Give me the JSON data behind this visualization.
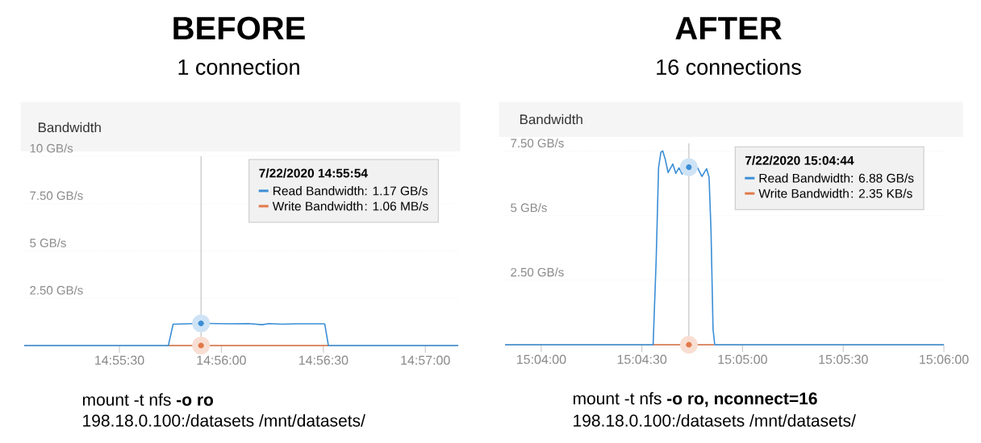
{
  "chart_data": [
    {
      "type": "line",
      "title": "BEFORE",
      "subtitle": "1 connection",
      "legend_title": "7/22/2020 14:55:54",
      "legend": "top right",
      "grid": "y",
      "marker": "none",
      "annotations": [
        "Bandwidth",
        ": 1.17  GB/s",
        ": 1.06  MB/s",
        "mount -t nfs **-o ro**",
        "198.18.0.100:/datasets /mnt/datasets/"
      ],
      "xlim": [
        14.91722,
        14.95269
      ],
      "ylim": [
        0,
        10
      ],
      "xticks": [
        {
          "value": 14.925,
          "label": "14:55:30"
        },
        {
          "value": 14.93333,
          "label": "14:56:00"
        },
        {
          "value": 14.94167,
          "label": "14:56:30"
        },
        {
          "value": 14.95,
          "label": "14:57:00"
        }
      ],
      "yticks": [
        {
          "value": 2.5,
          "label": "2.50 GB/s"
        },
        {
          "value": 5,
          "label": "5 GB/s"
        },
        {
          "value": 7.5,
          "label": "7.50 GB/s"
        },
        {
          "value": 10,
          "label": "10 GB/s"
        }
      ],
      "ref_lines": [
        {
          "axis": "x",
          "value": 14.93167,
          "color": "#b8b8b8"
        }
      ],
      "series": [
        {
          "name": "Read Bandwidth",
          "color": "#3b8ed6",
          "x": [
            14.91722,
            14.929,
            14.92939,
            14.93,
            14.93167,
            14.934,
            14.93556,
            14.93667,
            14.93722,
            14.93833,
            14.93944,
            14.94167,
            14.94178,
            14.94208,
            14.95269
          ],
          "values": [
            0,
            0,
            1.13,
            1.14,
            1.17,
            1.15,
            1.16,
            1.1,
            1.16,
            1.13,
            1.15,
            1.15,
            1.14,
            0,
            0
          ]
        },
        {
          "name": "Write Bandwidth",
          "color": "#e2794a",
          "x": [
            14.929,
            14.94208
          ],
          "values": [
            0,
            0
          ]
        },
        {
          "type": "scatter",
          "marker": "circle",
          "color": "#3b8ed6",
          "x": [
            14.93167
          ],
          "values": [
            1.17
          ]
        },
        {
          "type": "scatter",
          "marker": "circle",
          "color": "#e2794a",
          "x": [
            14.93167
          ],
          "values": [
            0
          ]
        }
      ]
    },
    {
      "type": "line",
      "title": "AFTER",
      "subtitle": "16 connections",
      "legend_title": "7/22/2020 15:04:44",
      "legend": "top right",
      "grid": "y",
      "marker": "none",
      "annotations": [
        "Bandwidth",
        ": 6.88 GB/s",
        ": 2.35  KB/s",
        "mount -t nfs **-o ro, nconnect=16**",
        "198.18.0.100:/datasets /mnt/datasets/"
      ],
      "xlim": [
        15.06367,
        15.1
      ],
      "ylim": [
        0,
        7.8
      ],
      "xticks": [
        {
          "value": 15.06667,
          "label": "15:04:00"
        },
        {
          "value": 15.075,
          "label": "15:04:30"
        },
        {
          "value": 15.08333,
          "label": "15:05:00"
        },
        {
          "value": 15.09167,
          "label": "15:05:30"
        },
        {
          "value": 15.1,
          "label": "15:06:00"
        }
      ],
      "yticks": [
        {
          "value": 2.5,
          "label": "2.50 GB/s"
        },
        {
          "value": 5,
          "label": "5 GB/s"
        },
        {
          "value": 7.5,
          "label": "7.50 GB/s"
        }
      ],
      "ref_lines": [
        {
          "axis": "x",
          "value": 15.07889,
          "color": "#b8b8b8"
        }
      ],
      "series": [
        {
          "name": "Read Bandwidth",
          "color": "#3b8ed6",
          "x": [
            15.06367,
            15.07593,
            15.07618,
            15.07638,
            15.07657,
            15.07672,
            15.07692,
            15.07717,
            15.07756,
            15.07781,
            15.07807,
            15.07833,
            15.07864,
            15.07889,
            15.07925,
            15.07961,
            15.07997,
            15.08036,
            15.08056,
            15.08072,
            15.08089,
            15.08103,
            15.1
          ],
          "values": [
            0,
            0,
            3.25,
            6.85,
            7.45,
            7.51,
            7.21,
            6.67,
            7.0,
            6.64,
            6.85,
            6.61,
            6.85,
            6.88,
            6.64,
            6.85,
            6.52,
            6.82,
            6.49,
            4.45,
            0.6,
            0,
            0
          ]
        },
        {
          "name": "Write Bandwidth",
          "color": "#e2794a",
          "x": [
            15.07593,
            15.08095
          ],
          "values": [
            0,
            0
          ]
        },
        {
          "type": "scatter",
          "marker": "circle",
          "color": "#3b8ed6",
          "x": [
            15.07889
          ],
          "values": [
            6.88
          ]
        },
        {
          "type": "scatter",
          "marker": "circle",
          "color": "#e2794a",
          "x": [
            15.07889
          ],
          "values": [
            0
          ]
        }
      ]
    }
  ]
}
